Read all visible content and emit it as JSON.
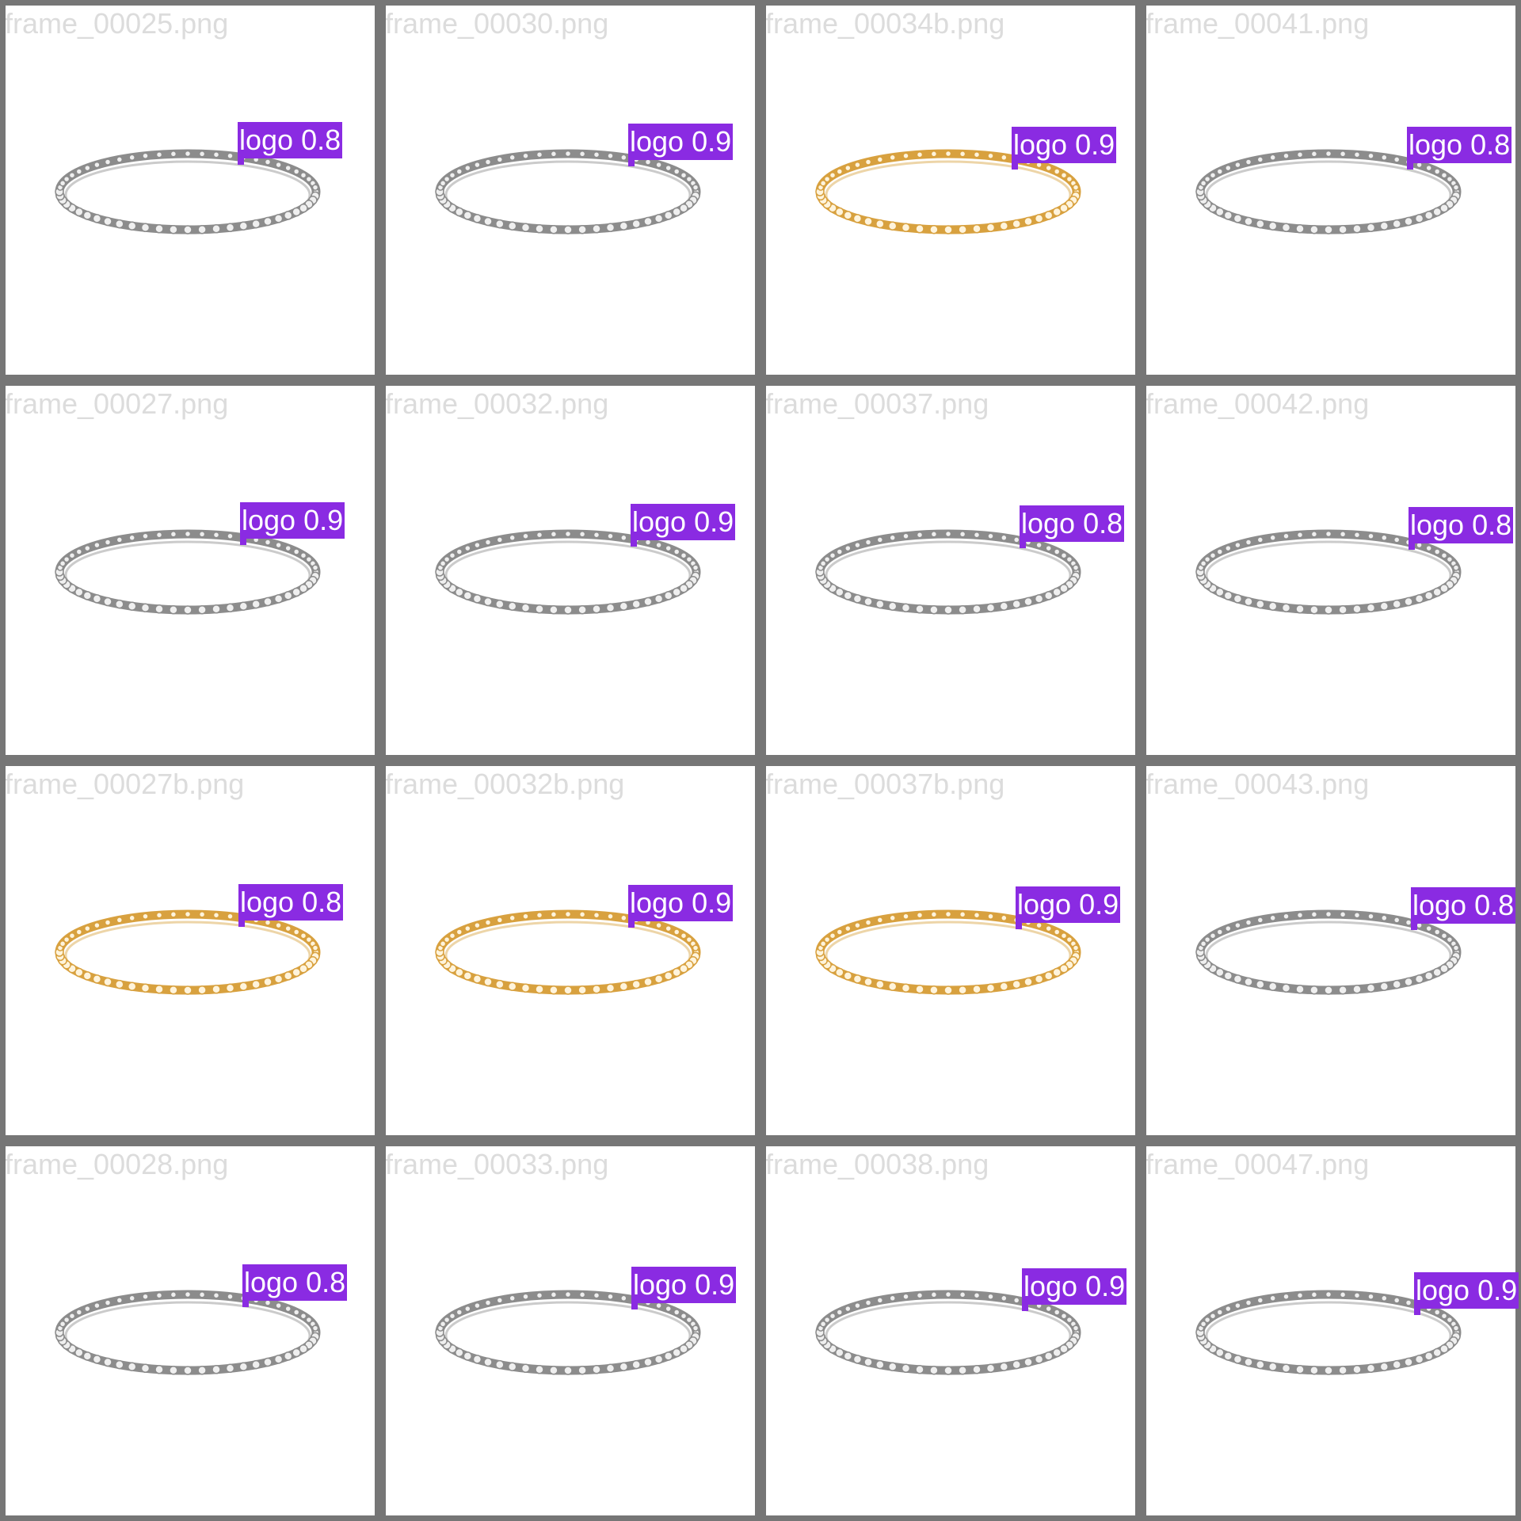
{
  "colors": {
    "separator": "#767676",
    "tile_background": "#ffffff",
    "filename_text": "#dcdcdc",
    "label_background": "#8a2be2",
    "label_text": "#ffffff",
    "silver_metal": "#8c8c8c",
    "silver_stone": "#efefef",
    "gold_metal": "#d8a13f",
    "gold_stone": "#fff4dc"
  },
  "tiles": [
    {
      "filename": "frame_00025.png",
      "label": "logo 0.8",
      "metal": "silver"
    },
    {
      "filename": "frame_00030.png",
      "label": "logo 0.9",
      "metal": "silver"
    },
    {
      "filename": "frame_00034b.png",
      "label": "logo 0.9",
      "metal": "gold"
    },
    {
      "filename": "frame_00041.png",
      "label": "logo 0.8",
      "metal": "silver"
    },
    {
      "filename": "frame_00027.png",
      "label": "logo 0.9",
      "metal": "silver"
    },
    {
      "filename": "frame_00032.png",
      "label": "logo 0.9",
      "metal": "silver"
    },
    {
      "filename": "frame_00037.png",
      "label": "logo 0.8",
      "metal": "silver"
    },
    {
      "filename": "frame_00042.png",
      "label": "logo 0.8",
      "metal": "silver"
    },
    {
      "filename": "frame_00027b.png",
      "label": "logo 0.8",
      "metal": "gold"
    },
    {
      "filename": "frame_00032b.png",
      "label": "logo 0.9",
      "metal": "gold"
    },
    {
      "filename": "frame_00037b.png",
      "label": "logo 0.9",
      "metal": "gold"
    },
    {
      "filename": "frame_00043.png",
      "label": "logo 0.8",
      "metal": "silver"
    },
    {
      "filename": "frame_00028.png",
      "label": "logo 0.8",
      "metal": "silver"
    },
    {
      "filename": "frame_00033.png",
      "label": "logo 0.9",
      "metal": "silver"
    },
    {
      "filename": "frame_00038.png",
      "label": "logo 0.9",
      "metal": "silver"
    },
    {
      "filename": "frame_00047.png",
      "label": "logo 0.9",
      "metal": "silver"
    }
  ]
}
